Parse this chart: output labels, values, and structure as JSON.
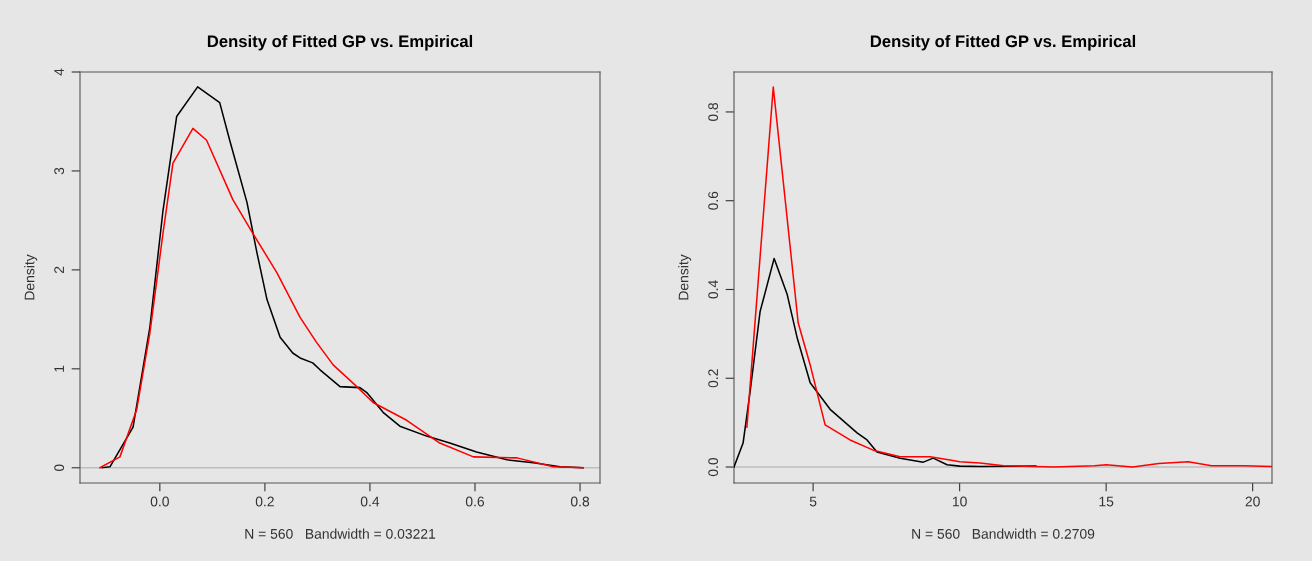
{
  "chart_data": [
    {
      "type": "line",
      "title": "Density of Fitted GP vs. Empirical",
      "xlabel": "N = 560   Bandwidth = 0.03221",
      "ylabel": "Density",
      "xlim": [
        -0.152,
        0.838
      ],
      "ylim": [
        -0.154,
        4.0
      ],
      "xticks": [
        {
          "value": 0,
          "label": "0.0"
        },
        {
          "value": 0.2,
          "label": "0.2"
        },
        {
          "value": 0.4,
          "label": "0.4"
        },
        {
          "value": 0.6,
          "label": "0.6"
        },
        {
          "value": 0.8,
          "label": "0.8"
        }
      ],
      "yticks": [
        0,
        1,
        2,
        3,
        4
      ],
      "grid": false,
      "marker": "none",
      "line_style": "solid",
      "ref_lines": [
        {
          "axis": "y",
          "value": 0,
          "color": "#bebebe"
        }
      ],
      "series": [
        {
          "color": "#000000",
          "x": [
            -0.11,
            -0.095,
            -0.051,
            -0.019,
            0.006,
            0.032,
            0.072,
            0.114,
            0.133,
            0.166,
            0.185,
            0.204,
            0.229,
            0.253,
            0.267,
            0.291,
            0.305,
            0.343,
            0.381,
            0.394,
            0.425,
            0.457,
            0.508,
            0.552,
            0.603,
            0.661,
            0.711,
            0.762,
            0.806
          ],
          "values": [
            0,
            0.01,
            0.41,
            1.42,
            2.6,
            3.55,
            3.85,
            3.69,
            3.31,
            2.68,
            2.17,
            1.7,
            1.32,
            1.16,
            1.11,
            1.06,
            0.99,
            0.82,
            0.81,
            0.76,
            0.56,
            0.42,
            0.32,
            0.25,
            0.16,
            0.08,
            0.05,
            0.01,
            0
          ]
        },
        {
          "color": "#ff0000",
          "x": [
            -0.114,
            -0.076,
            -0.044,
            -0.019,
            0.006,
            0.025,
            0.063,
            0.089,
            0.139,
            0.177,
            0.223,
            0.267,
            0.298,
            0.33,
            0.375,
            0.406,
            0.47,
            0.533,
            0.597,
            0.68,
            0.749,
            0.806
          ],
          "values": [
            0,
            0.11,
            0.59,
            1.36,
            2.37,
            3.08,
            3.43,
            3.31,
            2.71,
            2.37,
            1.97,
            1.52,
            1.27,
            1.04,
            0.82,
            0.66,
            0.48,
            0.25,
            0.11,
            0.1,
            0.01,
            0
          ]
        }
      ]
    },
    {
      "type": "line",
      "title": "Density of Fitted GP vs. Empirical",
      "xlabel": "N = 560   Bandwidth = 0.2709",
      "ylabel": "Density",
      "xlim": [
        2.3,
        20.66
      ],
      "ylim": [
        -0.036,
        0.89
      ],
      "xticks": [
        5,
        10,
        15,
        20
      ],
      "yticks": [
        {
          "value": 0,
          "label": "0.0"
        },
        {
          "value": 0.2,
          "label": "0.2"
        },
        {
          "value": 0.4,
          "label": "0.4"
        },
        {
          "value": 0.6,
          "label": "0.6"
        },
        {
          "value": 0.8,
          "label": "0.8"
        }
      ],
      "grid": false,
      "marker": "none",
      "line_style": "solid",
      "ref_lines": [
        {
          "axis": "y",
          "value": 0,
          "color": "#bebebe"
        }
      ],
      "series": [
        {
          "color": "#000000",
          "x": [
            2.3,
            2.61,
            2.85,
            3.19,
            3.67,
            4.11,
            4.46,
            4.9,
            5.58,
            6.5,
            6.84,
            7.18,
            7.97,
            8.76,
            9.1,
            9.57,
            10.0,
            10.7,
            12.6
          ],
          "values": [
            0,
            0.054,
            0.17,
            0.35,
            0.47,
            0.39,
            0.29,
            0.19,
            0.13,
            0.077,
            0.061,
            0.034,
            0.02,
            0.011,
            0.02,
            0.005,
            0.002,
            0.001,
            0.002
          ]
        },
        {
          "color": "#ff0000",
          "x": [
            2.74,
            3.64,
            4.49,
            4.9,
            5.41,
            6.26,
            7.05,
            7.97,
            8.99,
            9.67,
            10.0,
            10.7,
            11.5,
            13.2,
            14.6,
            15.0,
            15.9,
            16.8,
            17.8,
            18.6,
            19.7,
            20.66
          ],
          "values": [
            0.09,
            0.856,
            0.325,
            0.23,
            0.095,
            0.061,
            0.038,
            0.023,
            0.023,
            0.016,
            0.012,
            0.009,
            0.003,
            0,
            0.003,
            0.005,
            0,
            0.008,
            0.012,
            0.003,
            0.003,
            0.001
          ]
        }
      ]
    }
  ]
}
